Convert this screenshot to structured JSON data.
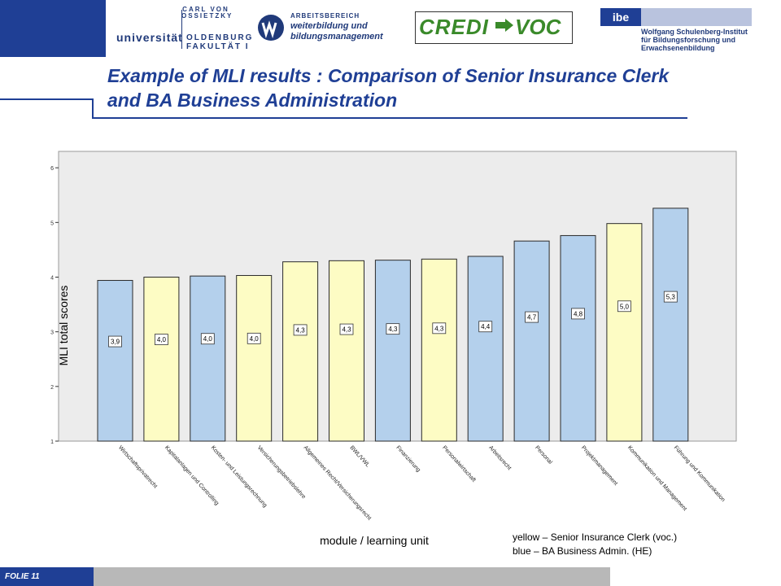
{
  "header": {
    "uni_small": "CARL VON OSSIETZKY",
    "uni_main": "universität",
    "uni_city": "OLDENBURG",
    "uni_faculty": "FAKULTÄT I",
    "awb_line1": "ARBEITSBEREICH",
    "awb_line2": "weiterbildung und",
    "awb_line3": "bildungsmanagement",
    "credi": "CREDI",
    "voc": "VOC",
    "ibe_box": "ibe",
    "ibe_line1": "Wolfgang Schulenberg-Institut",
    "ibe_line2": "für Bildungsforschung und",
    "ibe_line3": "Erwachsenenbildung"
  },
  "slide": {
    "title_line1": "Example of MLI results : Comparison of Senior Insurance Clerk",
    "title_line2": "and BA Business Administration",
    "legend_line1": "yellow – Senior Insurance Clerk (voc.)",
    "legend_line2": "blue – BA Business Admin. (HE)",
    "footer": "FOLIE  11"
  },
  "colors": {
    "blue_bar": "#b4d0ec",
    "yellow_bar": "#fdfcc4",
    "plot_bg": "#ececec",
    "brand_blue": "#1f3f95"
  },
  "chart_data": {
    "type": "bar",
    "ylabel": "MLI total scores",
    "xlabel": "module / learning unit",
    "ylim": [
      1,
      6.3
    ],
    "yticks": [
      1,
      2,
      3,
      4,
      5,
      6
    ],
    "grid": false,
    "categories": [
      "Wirtschaftsprivatrecht",
      "Kapitalanlagen und Controlling",
      "Kosten- und Leistungsrechnung",
      "Versicherungsbetriebslehre",
      "Allgemeines Recht/Versicherungsrecht",
      "BWL/VWL",
      "Finanzierung",
      "Personalwirtschaft",
      "Arbeitsrecht",
      "Personal",
      "Projektmanagement",
      "Kommunikation und Management",
      "Führung und Kommunikation"
    ],
    "values": [
      3.94,
      4.0,
      4.02,
      4.03,
      4.28,
      4.3,
      4.31,
      4.33,
      4.38,
      4.66,
      4.76,
      4.98,
      5.26
    ],
    "value_labels": [
      "3,9",
      "4,0",
      "4,0",
      "4,0",
      "4,3",
      "4,3",
      "4,3",
      "4,3",
      "4,4",
      "4,7",
      "4,8",
      "5,0",
      "5,3"
    ],
    "groups": [
      "blue",
      "yellow",
      "blue",
      "yellow",
      "yellow",
      "yellow",
      "blue",
      "yellow",
      "blue",
      "blue",
      "blue",
      "yellow",
      "blue"
    ]
  }
}
